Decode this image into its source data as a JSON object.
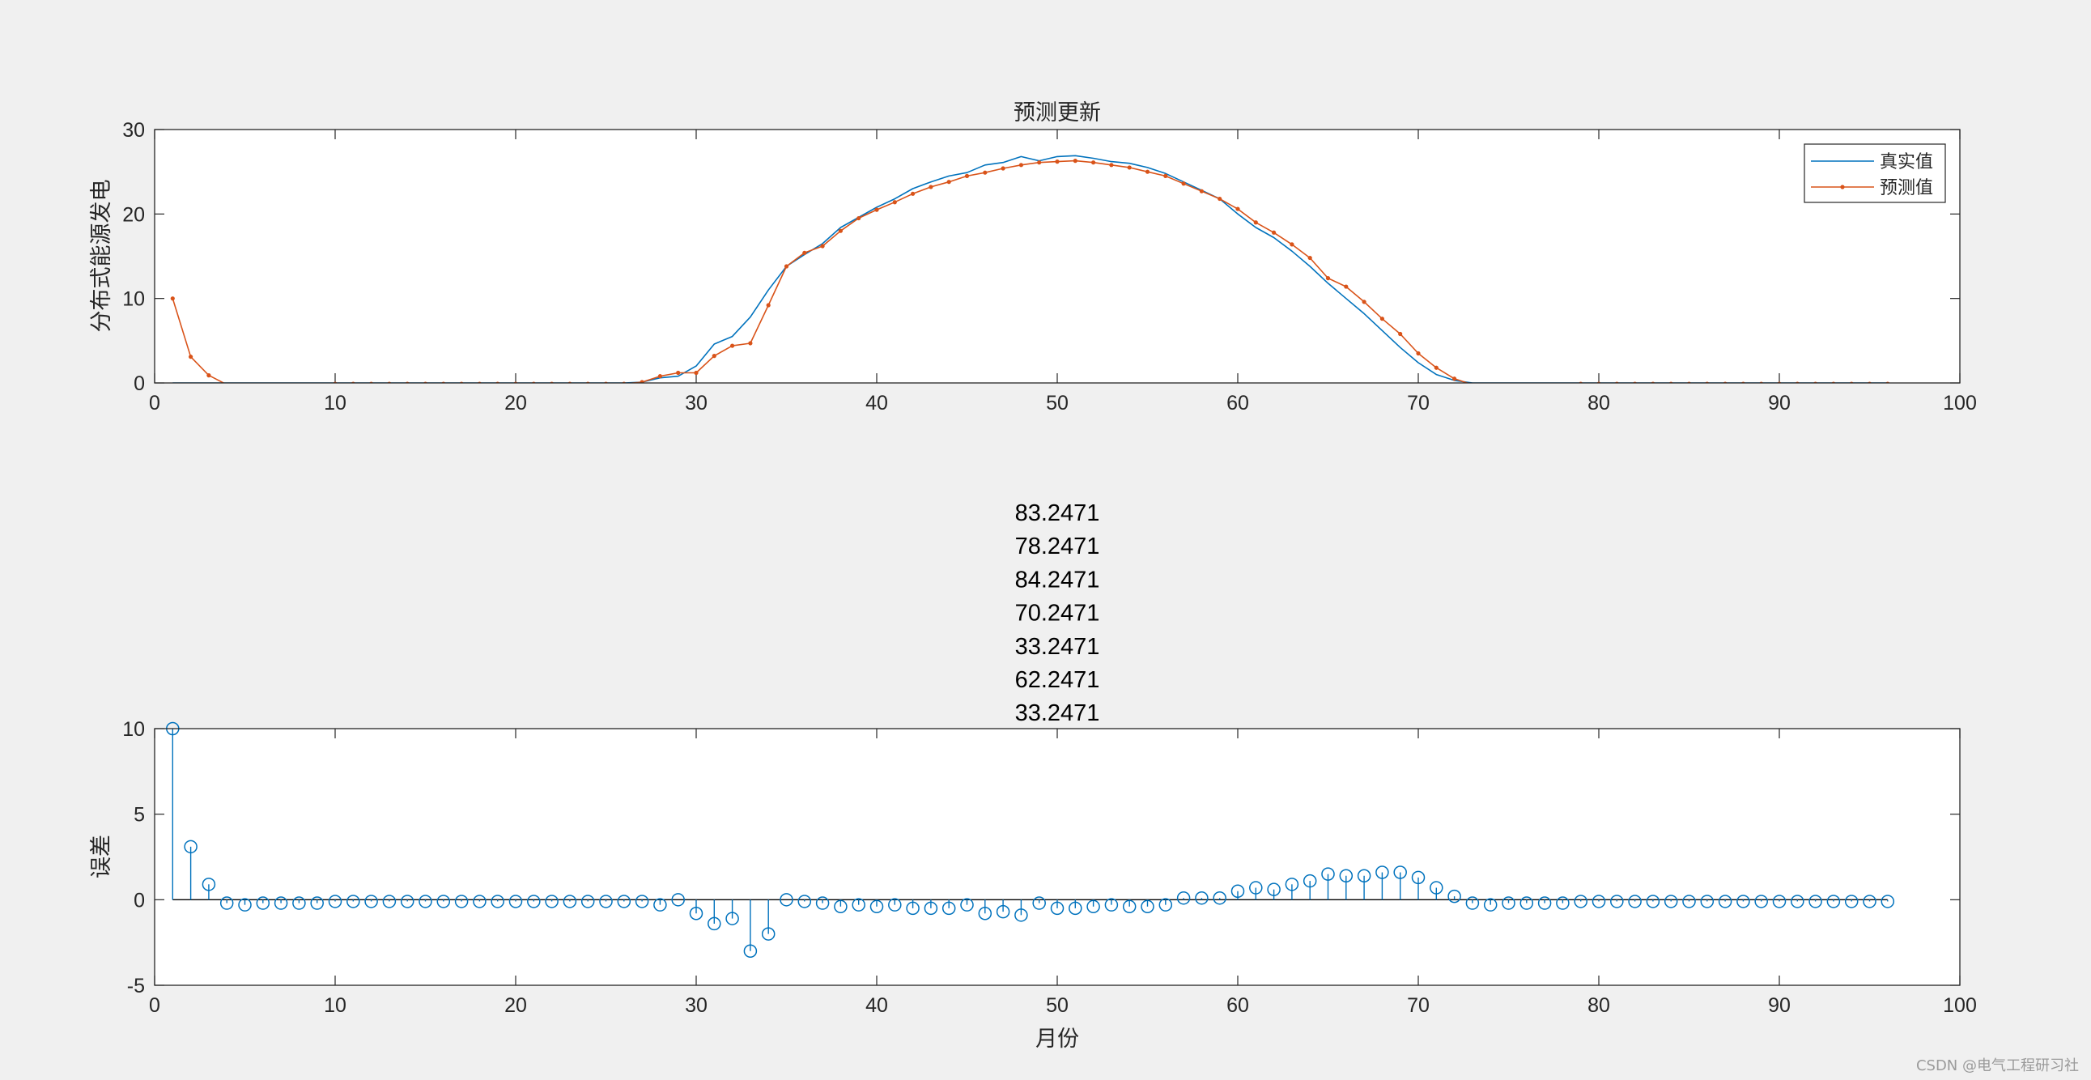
{
  "watermark": "CSDN @电气工程研习社",
  "chart_data": [
    {
      "type": "line",
      "title": "预测更新",
      "xlabel": "",
      "ylabel": "分布式能源发电",
      "xlim": [
        0,
        100
      ],
      "ylim": [
        0,
        30
      ],
      "xticks": [
        0,
        10,
        20,
        30,
        40,
        50,
        60,
        70,
        80,
        90,
        100
      ],
      "yticks": [
        0,
        10,
        20,
        30
      ],
      "legend": {
        "position": "top-right"
      },
      "x": [
        1,
        2,
        3,
        4,
        5,
        6,
        7,
        8,
        9,
        10,
        11,
        12,
        13,
        14,
        15,
        16,
        17,
        18,
        19,
        20,
        21,
        22,
        23,
        24,
        25,
        26,
        27,
        28,
        29,
        30,
        31,
        32,
        33,
        34,
        35,
        36,
        37,
        38,
        39,
        40,
        41,
        42,
        43,
        44,
        45,
        46,
        47,
        48,
        49,
        50,
        51,
        52,
        53,
        54,
        55,
        56,
        57,
        58,
        59,
        60,
        61,
        62,
        63,
        64,
        65,
        66,
        67,
        68,
        69,
        70,
        71,
        72,
        73,
        74,
        75,
        76,
        77,
        78,
        79,
        80,
        81,
        82,
        83,
        84,
        85,
        86,
        87,
        88,
        89,
        90,
        91,
        92,
        93,
        94,
        95,
        96
      ],
      "series": [
        {
          "name": "真实值",
          "color": "#0072BD",
          "marker": "none",
          "values": [
            0,
            0,
            0,
            0,
            0,
            0,
            0,
            0,
            0,
            0,
            0,
            0,
            0,
            0,
            0,
            0,
            0,
            0,
            0,
            0,
            0,
            0,
            0,
            0,
            0,
            0,
            0.1,
            0.6,
            0.8,
            2.0,
            4.6,
            5.5,
            7.8,
            11.0,
            13.8,
            15.2,
            16.5,
            18.4,
            19.6,
            20.8,
            21.8,
            23.0,
            23.8,
            24.5,
            24.9,
            25.8,
            26.1,
            26.8,
            26.3,
            26.8,
            26.9,
            26.6,
            26.2,
            26.0,
            25.5,
            24.8,
            23.8,
            22.8,
            21.8,
            20.0,
            18.4,
            17.2,
            15.6,
            13.8,
            11.8,
            10.0,
            8.2,
            6.2,
            4.2,
            2.4,
            1.0,
            0.3,
            0,
            0,
            0,
            0,
            0,
            0,
            0,
            0,
            0,
            0,
            0,
            0,
            0,
            0,
            0,
            0,
            0,
            0,
            0,
            0,
            0,
            0,
            0,
            0
          ]
        },
        {
          "name": "预测值",
          "color": "#D95319",
          "marker": "dot",
          "values": [
            10.0,
            3.1,
            0.9,
            -0.2,
            -0.3,
            -0.2,
            -0.2,
            -0.2,
            -0.2,
            -0.1,
            -0.1,
            -0.1,
            -0.1,
            -0.1,
            -0.1,
            -0.1,
            -0.1,
            -0.1,
            -0.1,
            -0.1,
            -0.1,
            -0.1,
            -0.1,
            -0.1,
            -0.1,
            -0.1,
            0.1,
            0.8,
            1.2,
            1.2,
            3.2,
            4.4,
            4.7,
            9.2,
            13.8,
            15.4,
            16.2,
            18.0,
            19.5,
            20.5,
            21.4,
            22.4,
            23.2,
            23.8,
            24.5,
            24.9,
            25.4,
            25.8,
            26.1,
            26.2,
            26.3,
            26.1,
            25.8,
            25.5,
            25.0,
            24.5,
            23.6,
            22.7,
            21.8,
            20.6,
            19.0,
            17.8,
            16.4,
            14.8,
            12.4,
            11.4,
            9.6,
            7.6,
            5.8,
            3.5,
            1.8,
            0.5,
            -0.2,
            -0.2,
            -0.2,
            -0.2,
            -0.2,
            -0.2,
            -0.1,
            -0.1,
            -0.1,
            -0.1,
            -0.1,
            -0.1,
            -0.1,
            -0.1,
            -0.1,
            -0.1,
            -0.1,
            -0.1,
            -0.1,
            -0.1,
            -0.1,
            -0.1,
            -0.1,
            -0.1
          ]
        }
      ]
    },
    {
      "type": "stem",
      "title_lines": [
        "83.2471",
        "78.2471",
        "84.2471",
        "70.2471",
        "33.2471",
        "62.2471",
        "33.2471"
      ],
      "xlabel": "月份",
      "ylabel": "误差",
      "xlim": [
        0,
        100
      ],
      "ylim": [
        -5,
        10
      ],
      "xticks": [
        0,
        10,
        20,
        30,
        40,
        50,
        60,
        70,
        80,
        90,
        100
      ],
      "yticks": [
        -5,
        0,
        5,
        10
      ],
      "color": "#0072BD",
      "x": [
        1,
        2,
        3,
        4,
        5,
        6,
        7,
        8,
        9,
        10,
        11,
        12,
        13,
        14,
        15,
        16,
        17,
        18,
        19,
        20,
        21,
        22,
        23,
        24,
        25,
        26,
        27,
        28,
        29,
        30,
        31,
        32,
        33,
        34,
        35,
        36,
        37,
        38,
        39,
        40,
        41,
        42,
        43,
        44,
        45,
        46,
        47,
        48,
        49,
        50,
        51,
        52,
        53,
        54,
        55,
        56,
        57,
        58,
        59,
        60,
        61,
        62,
        63,
        64,
        65,
        66,
        67,
        68,
        69,
        70,
        71,
        72,
        73,
        74,
        75,
        76,
        77,
        78,
        79,
        80,
        81,
        82,
        83,
        84,
        85,
        86,
        87,
        88,
        89,
        90,
        91,
        92,
        93,
        94,
        95,
        96
      ],
      "values": [
        10.0,
        3.1,
        0.9,
        -0.2,
        -0.3,
        -0.2,
        -0.2,
        -0.2,
        -0.2,
        -0.1,
        -0.1,
        -0.1,
        -0.1,
        -0.1,
        -0.1,
        -0.1,
        -0.1,
        -0.1,
        -0.1,
        -0.1,
        -0.1,
        -0.1,
        -0.1,
        -0.1,
        -0.1,
        -0.1,
        -0.1,
        -0.3,
        0,
        -0.8,
        -1.4,
        -1.1,
        -3.0,
        -2.0,
        0,
        -0.1,
        -0.2,
        -0.4,
        -0.3,
        -0.4,
        -0.3,
        -0.5,
        -0.5,
        -0.5,
        -0.3,
        -0.8,
        -0.7,
        -0.9,
        -0.2,
        -0.5,
        -0.5,
        -0.4,
        -0.3,
        -0.4,
        -0.4,
        -0.3,
        0.1,
        0.1,
        0.1,
        0.5,
        0.7,
        0.6,
        0.9,
        1.1,
        1.5,
        1.4,
        1.4,
        1.6,
        1.6,
        1.3,
        0.7,
        0.2,
        -0.2,
        -0.3,
        -0.2,
        -0.2,
        -0.2,
        -0.2,
        -0.1,
        -0.1,
        -0.1,
        -0.1,
        -0.1,
        -0.1,
        -0.1,
        -0.1,
        -0.1,
        -0.1,
        -0.1,
        -0.1,
        -0.1,
        -0.1,
        -0.1,
        -0.1,
        -0.1,
        -0.1
      ]
    }
  ]
}
